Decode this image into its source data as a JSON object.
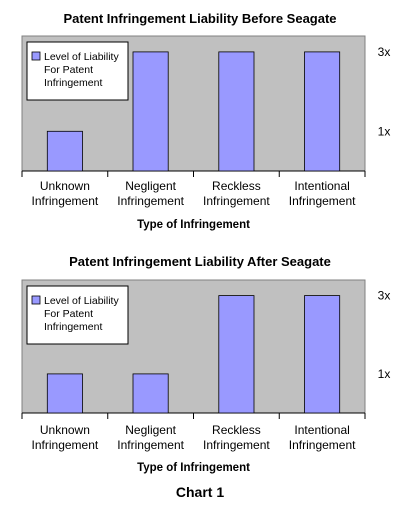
{
  "chart_data": [
    {
      "type": "bar",
      "title": "Patent Infringement Liability Before Seagate",
      "xlabel": "Type of Infringement",
      "ylabel": "",
      "categories": [
        "Unknown\nInfringement",
        "Negligent\nInfringement",
        "Reckless\nInfringement",
        "Intentional\nInfringement"
      ],
      "series": [
        {
          "name": "Level of Liability\nFor Patent\nInfringement",
          "values": [
            1,
            3,
            3,
            3
          ]
        }
      ],
      "y_ticks": [
        {
          "value": 3,
          "label": "3x"
        },
        {
          "value": 1,
          "label": "1x"
        }
      ],
      "ylim": [
        0,
        3.4
      ],
      "grid": false,
      "legend_position": "top-left",
      "bar_color": "#9999ff",
      "plot_background": "#c0c0c0"
    },
    {
      "type": "bar",
      "title": "Patent Infringement Liability After Seagate",
      "xlabel": "Type of Infringement",
      "ylabel": "",
      "categories": [
        "Unknown\nInfringement",
        "Negligent\nInfringement",
        "Reckless\nInfringement",
        "Intentional\nInfringement"
      ],
      "series": [
        {
          "name": "Level of Liability\nFor Patent\nInfringement",
          "values": [
            1,
            1,
            3,
            3
          ]
        }
      ],
      "y_ticks": [
        {
          "value": 3,
          "label": "3x"
        },
        {
          "value": 1,
          "label": "1x"
        }
      ],
      "ylim": [
        0,
        3.4
      ],
      "grid": false,
      "legend_position": "top-left",
      "bar_color": "#9999ff",
      "plot_background": "#c0c0c0"
    }
  ],
  "caption": "Chart 1"
}
